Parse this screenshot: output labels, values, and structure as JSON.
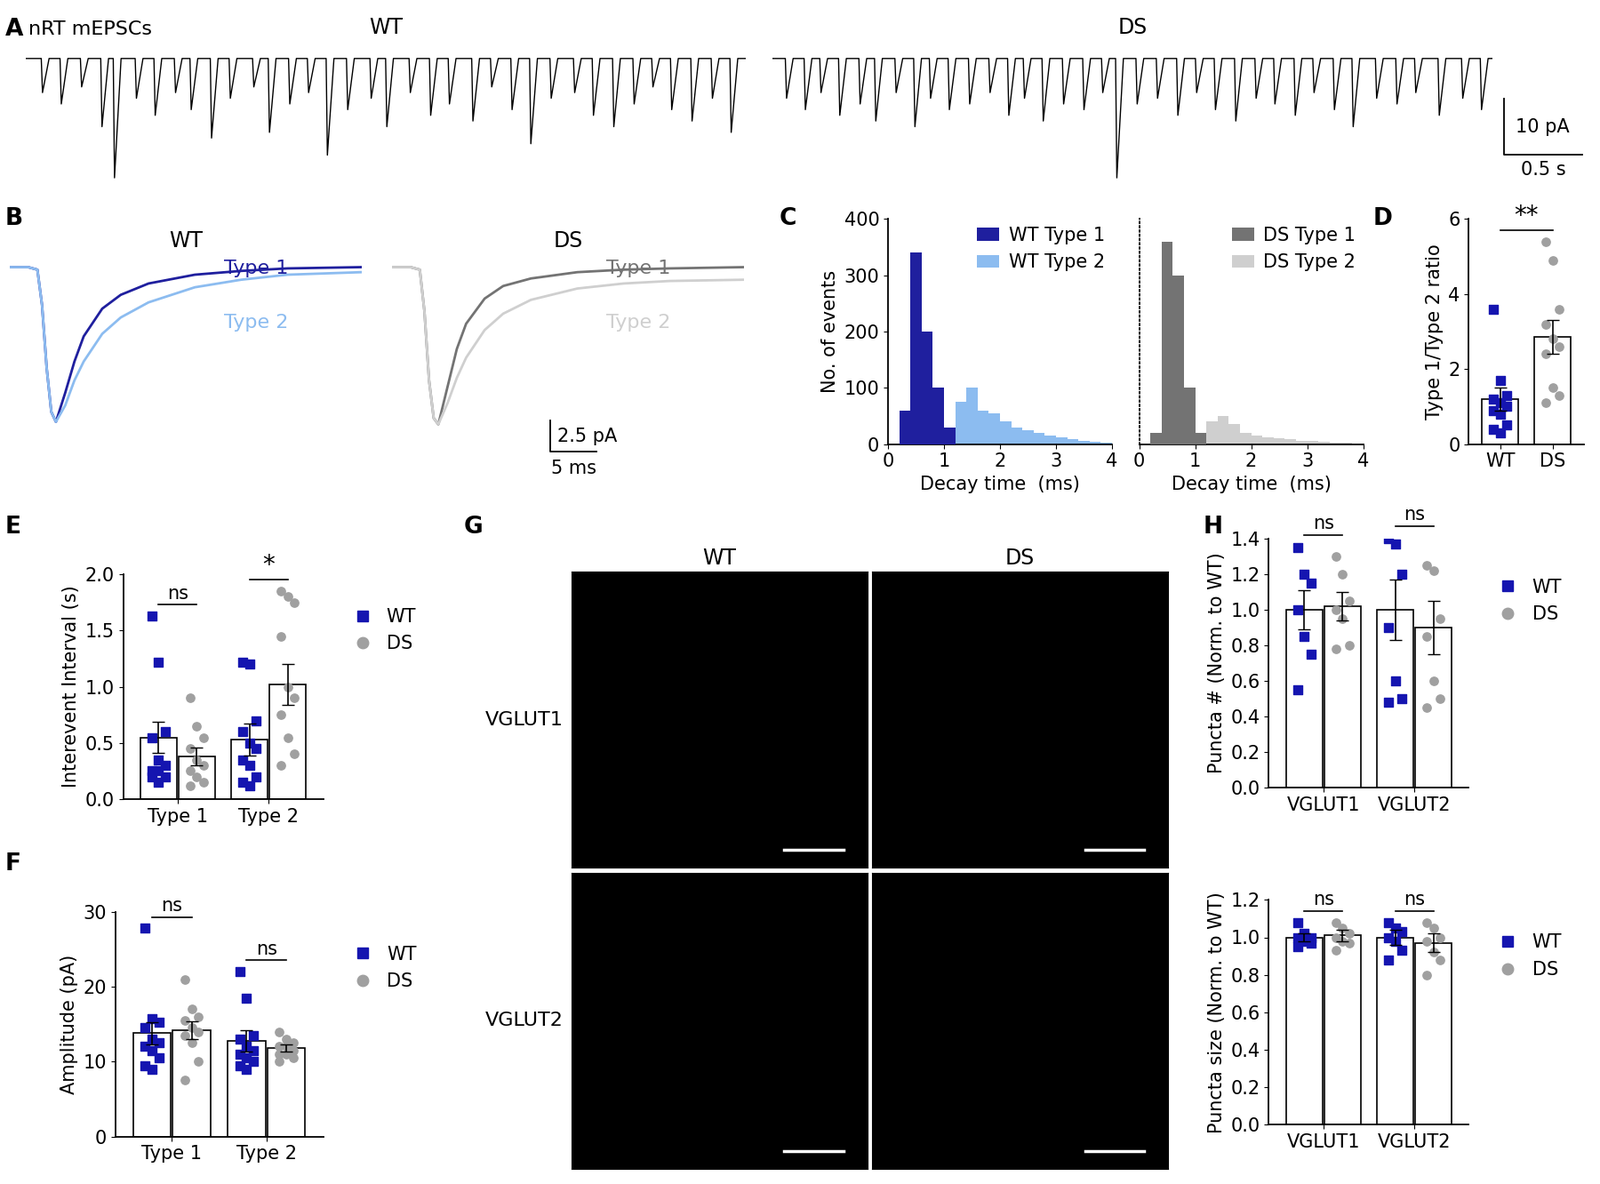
{
  "chart_data": [
    {
      "panel": "A",
      "type": "trace",
      "title": "nRT mEPSCs",
      "xlim": [
        0,
        4.6
      ],
      "ylim": [
        -22,
        3
      ],
      "traces": [
        {
          "name": "WT",
          "color": "#000000",
          "event_times": [
            0.1,
            0.22,
            0.35,
            0.48,
            0.56,
            0.7,
            0.82,
            0.95,
            1.05,
            1.18,
            1.3,
            1.45,
            1.55,
            1.68,
            1.8,
            1.92,
            2.05,
            2.2,
            2.3,
            2.45,
            2.58,
            2.7,
            2.85,
            2.97,
            3.1,
            3.22,
            3.35,
            3.5,
            3.62,
            3.75,
            3.88,
            4.0,
            4.12,
            4.25,
            4.38,
            4.5
          ],
          "event_amplitudes": [
            6,
            8,
            5,
            12,
            21,
            7,
            10,
            6,
            9,
            14,
            7,
            5,
            13,
            8,
            6,
            17,
            9,
            7,
            12,
            6,
            10,
            8,
            11,
            5,
            9,
            15,
            7,
            6,
            10,
            12,
            8,
            5,
            9,
            11,
            7,
            13
          ]
        },
        {
          "name": "DS",
          "color": "#000000",
          "event_times": [
            0.08,
            0.2,
            0.3,
            0.42,
            0.55,
            0.65,
            0.78,
            0.9,
            1.0,
            1.12,
            1.25,
            1.38,
            1.5,
            1.6,
            1.72,
            1.85,
            1.98,
            2.1,
            2.19,
            2.32,
            2.45,
            2.58,
            2.7,
            2.82,
            2.95,
            3.08,
            3.2,
            3.33,
            3.45,
            3.58,
            3.7,
            3.85,
            3.98,
            4.1,
            4.25,
            4.4,
            4.52
          ],
          "event_amplitudes": [
            7,
            9,
            6,
            10,
            8,
            11,
            6,
            12,
            7,
            9,
            8,
            6,
            10,
            7,
            11,
            8,
            9,
            6,
            21,
            8,
            7,
            10,
            6,
            9,
            11,
            7,
            8,
            10,
            6,
            9,
            12,
            7,
            8,
            6,
            10,
            7,
            9
          ]
        }
      ],
      "scale_bar": {
        "y": 10,
        "y_label": "10 pA",
        "x": 0.5,
        "x_label": "0.5 s"
      }
    },
    {
      "panel": "B",
      "type": "line",
      "xlim": [
        0,
        38
      ],
      "ylim": [
        -15,
        1
      ],
      "x": [
        0,
        2,
        3,
        3.5,
        4,
        4.5,
        5,
        6,
        7,
        8,
        10,
        12,
        15,
        20,
        25,
        30,
        38
      ],
      "subplots": [
        {
          "title": "WT",
          "series": [
            {
              "name": "Type 1",
              "color": "#1f1f9e",
              "values": [
                0,
                0,
                -0.2,
                -3,
                -8,
                -11.5,
                -12.3,
                -10,
                -7.5,
                -5.5,
                -3.3,
                -2.2,
                -1.3,
                -0.6,
                -0.3,
                -0.1,
                0
              ]
            },
            {
              "name": "Type 2",
              "color": "#8cbcf0",
              "values": [
                0,
                0,
                -0.2,
                -3,
                -8,
                -11.5,
                -12.3,
                -11,
                -9,
                -7.5,
                -5.3,
                -4,
                -2.8,
                -1.6,
                -1,
                -0.6,
                -0.4
              ]
            }
          ]
        },
        {
          "title": "DS",
          "series": [
            {
              "name": "Type 1",
              "color": "#737373",
              "values": [
                0,
                0,
                -0.2,
                -3.5,
                -9,
                -12,
                -12.5,
                -9.5,
                -6.5,
                -4.5,
                -2.5,
                -1.5,
                -0.9,
                -0.4,
                -0.2,
                -0.1,
                0
              ]
            },
            {
              "name": "Type 2",
              "color": "#cfcfcf",
              "values": [
                0,
                0,
                -0.2,
                -3.5,
                -9,
                -12,
                -12.5,
                -10.8,
                -8.8,
                -7.2,
                -5,
                -3.7,
                -2.6,
                -1.7,
                -1.3,
                -1.1,
                -1.0
              ]
            }
          ]
        }
      ],
      "scale_bar": {
        "y": 2.5,
        "y_label": "2.5 pA",
        "x": 5,
        "x_label": "5 ms"
      }
    },
    {
      "panel": "C",
      "type": "histogram",
      "xlabel": "Decay time  (ms)",
      "ylabel": "No. of events",
      "xlim": [
        0,
        4
      ],
      "xticks": [
        0,
        1,
        2,
        3,
        4
      ],
      "ylim": [
        0,
        400
      ],
      "yticks": [
        0,
        100,
        200,
        300,
        400
      ],
      "legend": "upper right",
      "bins": [
        0,
        0.2,
        0.4,
        0.6,
        0.8,
        1.0,
        1.2,
        1.4,
        1.6,
        1.8,
        2.0,
        2.2,
        2.4,
        2.6,
        2.8,
        3.0,
        3.2,
        3.4,
        3.6,
        3.8,
        4.0
      ],
      "subplots": [
        {
          "series": [
            {
              "name": "WT Type 1",
              "color": "#1f1f9e",
              "counts": [
                0,
                60,
                340,
                200,
                100,
                30,
                0,
                0,
                0,
                0,
                0,
                0,
                0,
                0,
                0,
                0,
                0,
                0,
                0,
                0
              ]
            },
            {
              "name": "WT Type 2",
              "color": "#8cbcf0",
              "counts": [
                0,
                0,
                0,
                0,
                0,
                20,
                75,
                100,
                60,
                55,
                40,
                30,
                25,
                20,
                15,
                12,
                8,
                6,
                4,
                2
              ]
            }
          ]
        },
        {
          "tick_labels": "x",
          "series": [
            {
              "name": "DS Type 1",
              "color": "#737373",
              "counts": [
                0,
                20,
                360,
                300,
                100,
                20,
                0,
                0,
                0,
                0,
                0,
                0,
                0,
                0,
                0,
                0,
                0,
                0,
                0,
                0
              ]
            },
            {
              "name": "DS Type 2",
              "color": "#cfcfcf",
              "counts": [
                0,
                0,
                0,
                0,
                0,
                15,
                40,
                50,
                35,
                20,
                15,
                12,
                10,
                8,
                6,
                5,
                4,
                3,
                2,
                1
              ]
            }
          ]
        }
      ]
    },
    {
      "panel": "D",
      "type": "bar_scatter",
      "ylabel": "Type 1/Type 2 ratio",
      "categories": [
        "WT",
        "DS"
      ],
      "ylim": [
        0,
        6
      ],
      "yticks": [
        0,
        2,
        4,
        6
      ],
      "significance": [
        "**"
      ],
      "series": [
        {
          "name": "WT",
          "color": "#1515b0",
          "marker": "square",
          "means": [
            1.2,
            null
          ],
          "sem": [
            0.3,
            null
          ],
          "points": [
            [
              3.6,
              1.7,
              1.3,
              1.2,
              1.1,
              1.0,
              0.9,
              0.8,
              0.5,
              0.4,
              0.3
            ],
            []
          ]
        },
        {
          "name": "DS",
          "color": "#a0a0a0",
          "marker": "circle",
          "means": [
            null,
            2.85
          ],
          "sem": [
            null,
            0.45
          ],
          "points": [
            [],
            [
              5.4,
              4.9,
              3.6,
              3.2,
              2.8,
              2.6,
              2.4,
              1.5,
              1.3,
              1.1
            ]
          ]
        }
      ]
    },
    {
      "panel": "E",
      "type": "bar_scatter",
      "ylabel": "Interevent Interval (s)",
      "categories": [
        "Type 1",
        "Type 2"
      ],
      "ylim": [
        0,
        2
      ],
      "yticks": [
        {
          "value": 0,
          "label": "0.0"
        },
        0.5,
        {
          "value": 1,
          "label": "1.0"
        },
        1.5,
        {
          "value": 2,
          "label": "2.0"
        }
      ],
      "significance": [
        "ns",
        "*"
      ],
      "legend": "right",
      "series": [
        {
          "name": "WT",
          "color": "#1515b0",
          "marker": "square",
          "means": [
            0.55,
            0.53
          ],
          "sem": [
            0.14,
            0.14
          ],
          "points": [
            [
              1.63,
              1.22,
              0.6,
              0.55,
              0.35,
              0.3,
              0.25,
              0.25,
              0.2,
              0.2,
              0.15
            ],
            [
              1.22,
              1.2,
              0.7,
              0.6,
              0.5,
              0.45,
              0.35,
              0.3,
              0.2,
              0.15,
              0.12
            ]
          ]
        },
        {
          "name": "DS",
          "color": "#a0a0a0",
          "marker": "circle",
          "means": [
            0.38,
            1.02
          ],
          "sem": [
            0.08,
            0.18
          ],
          "points": [
            [
              0.9,
              0.65,
              0.55,
              0.45,
              0.35,
              0.3,
              0.25,
              0.2,
              0.15,
              0.12
            ],
            [
              1.85,
              1.8,
              1.75,
              1.45,
              1.0,
              0.9,
              0.75,
              0.55,
              0.4,
              0.3
            ]
          ]
        }
      ]
    },
    {
      "panel": "F",
      "type": "bar_scatter",
      "ylabel": "Amplitude (pA)",
      "categories": [
        "Type 1",
        "Type 2"
      ],
      "ylim": [
        0,
        30
      ],
      "yticks": [
        0,
        10,
        20,
        30
      ],
      "significance": [
        "ns",
        "ns"
      ],
      "legend": "right",
      "series": [
        {
          "name": "WT",
          "color": "#1515b0",
          "marker": "square",
          "means": [
            13.8,
            12.8
          ],
          "sem": [
            1.5,
            1.4
          ],
          "points": [
            [
              27.8,
              15.7,
              15.3,
              14.5,
              13,
              12.5,
              12,
              11.5,
              10.5,
              9.5,
              9
            ],
            [
              22,
              18.5,
              13.5,
              13,
              12,
              11.5,
              11,
              10.5,
              10,
              9.5,
              9
            ]
          ]
        },
        {
          "name": "DS",
          "color": "#a0a0a0",
          "marker": "circle",
          "means": [
            14.2,
            11.8
          ],
          "sem": [
            1.2,
            0.5
          ],
          "points": [
            [
              21,
              17,
              16,
              15.5,
              14.5,
              14,
              13.5,
              12.5,
              10,
              7.5
            ],
            [
              14,
              13,
              12.5,
              12,
              12,
              11.5,
              11,
              11,
              10.5,
              10
            ]
          ]
        }
      ]
    },
    {
      "panel": "G",
      "type": "image_grid",
      "columns": [
        "WT",
        "DS"
      ],
      "rows": [
        "VGLUT1",
        "VGLUT2"
      ]
    },
    {
      "panel": "H",
      "type": "bar_scatter_stack",
      "subplots": [
        {
          "ylabel": "Puncta # (Norm. to WT)",
          "categories": [
            "VGLUT1",
            "VGLUT2"
          ],
          "ylim": [
            0,
            1.4
          ],
          "yticks": [
            {
              "value": 0,
              "label": "0.0"
            },
            0.2,
            0.4,
            0.6,
            0.8,
            {
              "value": 1,
              "label": "1.0"
            },
            1.2,
            1.4
          ],
          "significance": [
            "ns",
            "ns"
          ],
          "legend": "right",
          "series": [
            {
              "name": "WT",
              "color": "#1515b0",
              "marker": "square",
              "means": [
                1.0,
                1.0
              ],
              "sem": [
                0.11,
                0.17
              ],
              "points": [
                [
                  1.35,
                  1.2,
                  1.15,
                  1.0,
                  0.85,
                  0.75,
                  0.55
                ],
                [
                  1.4,
                  1.37,
                  1.2,
                  0.9,
                  0.6,
                  0.5,
                  0.48
                ]
              ]
            },
            {
              "name": "DS",
              "color": "#a0a0a0",
              "marker": "circle",
              "means": [
                1.02,
                0.9
              ],
              "sem": [
                0.08,
                0.15
              ],
              "points": [
                [
                  1.3,
                  1.2,
                  1.05,
                  1.0,
                  0.95,
                  0.8,
                  0.78
                ],
                [
                  1.25,
                  1.22,
                  0.95,
                  0.85,
                  0.6,
                  0.5,
                  0.45
                ]
              ]
            }
          ]
        },
        {
          "ylabel": "Puncta size (Norm. to WT)",
          "categories": [
            "VGLUT1",
            "VGLUT2"
          ],
          "ylim": [
            0,
            1.2
          ],
          "yticks": [
            {
              "value": 0,
              "label": "0.0"
            },
            0.2,
            0.4,
            0.6,
            0.8,
            {
              "value": 1,
              "label": "1.0"
            },
            1.2
          ],
          "significance": [
            "ns",
            "ns"
          ],
          "legend": "right",
          "series": [
            {
              "name": "WT",
              "color": "#1515b0",
              "marker": "square",
              "means": [
                1.0,
                1.0
              ],
              "sem": [
                0.02,
                0.04
              ],
              "points": [
                [
                  1.08,
                  1.02,
                  1.0,
                  1.0,
                  0.98,
                  0.97,
                  0.95
                ],
                [
                  1.08,
                  1.05,
                  1.03,
                  1.0,
                  0.98,
                  0.93,
                  0.88
                ]
              ]
            },
            {
              "name": "DS",
              "color": "#a0a0a0",
              "marker": "circle",
              "means": [
                1.01,
                0.97
              ],
              "sem": [
                0.03,
                0.05
              ],
              "points": [
                [
                  1.08,
                  1.05,
                  1.02,
                  1.0,
                  0.98,
                  0.97,
                  0.93
                ],
                [
                  1.08,
                  1.05,
                  1.0,
                  0.98,
                  0.92,
                  0.88,
                  0.8
                ]
              ]
            }
          ]
        }
      ]
    }
  ]
}
